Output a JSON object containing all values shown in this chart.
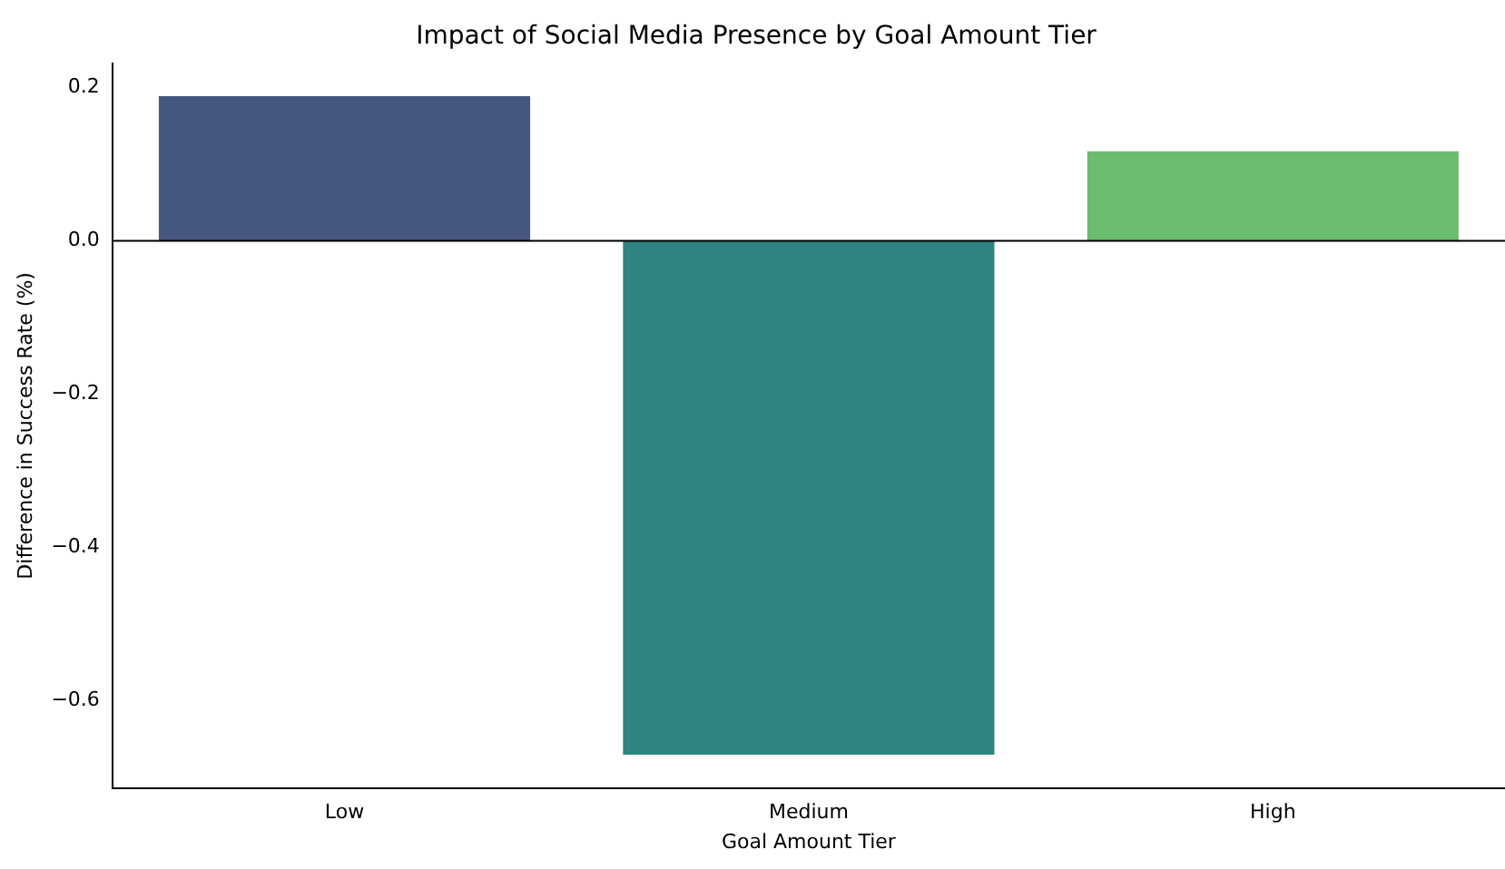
{
  "chart_data": {
    "type": "bar",
    "title": "Impact of Social Media Presence by Goal Amount Tier",
    "xlabel": "Goal Amount Tier",
    "ylabel": "Difference in Success Rate (%)",
    "categories": [
      "Low",
      "Medium",
      "High"
    ],
    "values": [
      0.189,
      -0.671,
      0.117
    ],
    "colors": [
      "#46577f",
      "#2e8480",
      "#6bbc6e"
    ],
    "ylim": [
      -0.715,
      0.232
    ],
    "yticks": [
      {
        "value": -0.6,
        "label": "−0.6"
      },
      {
        "value": -0.4,
        "label": "−0.4"
      },
      {
        "value": -0.2,
        "label": "−0.2"
      },
      {
        "value": 0,
        "label": "0.0"
      },
      0.2
    ],
    "ref_lines": [
      {
        "axis": "y",
        "value": 0,
        "color": "#000000"
      }
    ],
    "grid": false,
    "legend": false
  }
}
